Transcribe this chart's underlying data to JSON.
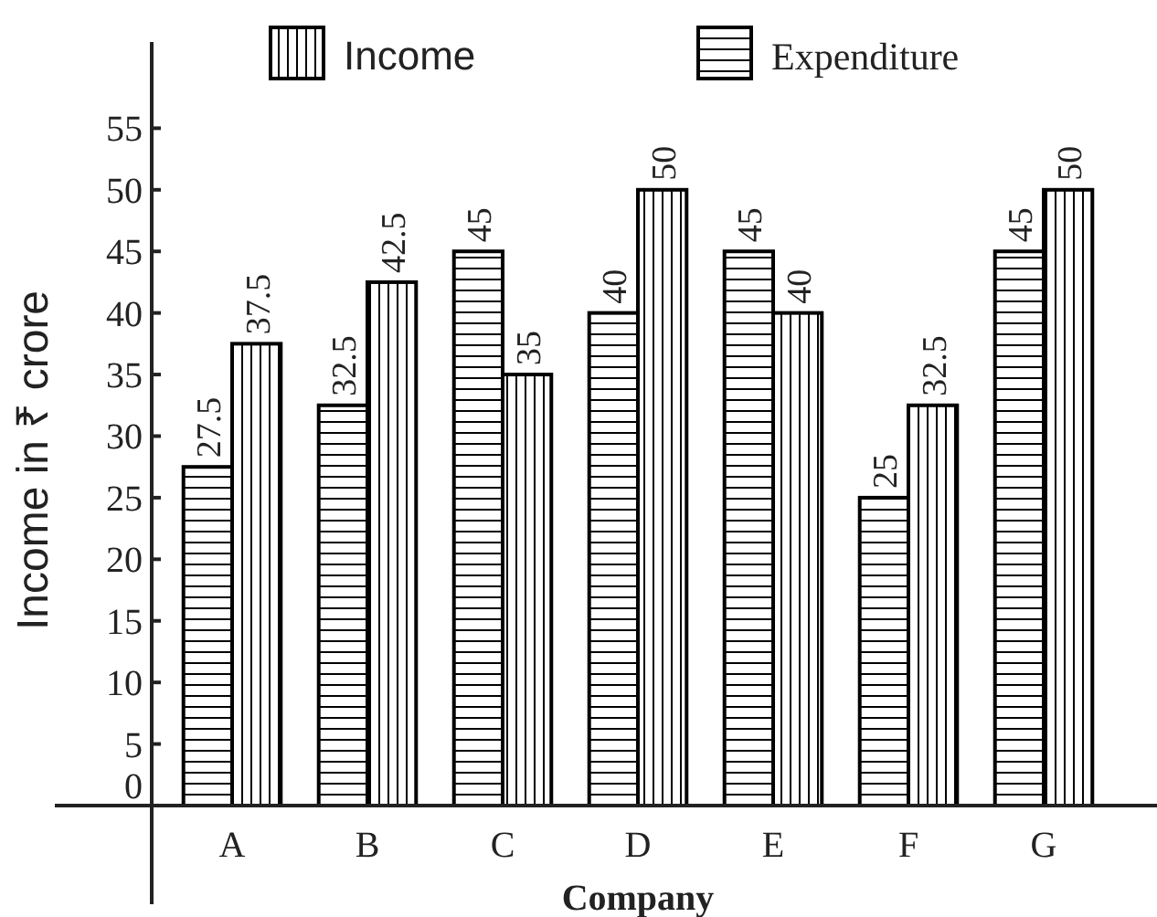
{
  "chart_data": {
    "type": "bar",
    "xlabel": "Company",
    "ylabel": "Income in ₹ crore",
    "categories": [
      "A",
      "B",
      "C",
      "D",
      "E",
      "F",
      "G"
    ],
    "series": [
      {
        "name": "Expenditure",
        "color": "#000000",
        "values": [
          27.5,
          32.5,
          45,
          40,
          45,
          25,
          45
        ]
      },
      {
        "name": "Income",
        "color": "#000000",
        "values": [
          37.5,
          42.5,
          35,
          50,
          40,
          32.5,
          50
        ]
      }
    ],
    "ylim": [
      0,
      62
    ],
    "yticks": [
      0,
      5,
      10,
      15,
      20,
      25,
      30,
      35,
      40,
      45,
      50,
      55
    ],
    "data_labels": true,
    "legend": "top",
    "grid": false
  }
}
